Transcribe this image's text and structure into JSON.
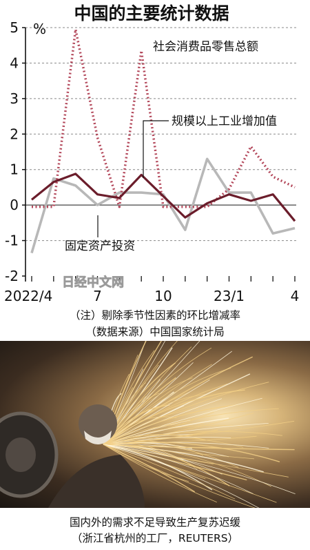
{
  "chart_data": {
    "type": "line",
    "title": "中国的主要统计数据",
    "unit": "%",
    "ylim": [
      -2,
      5
    ],
    "yticks": [
      "5",
      "4",
      "3",
      "2",
      "1",
      "0",
      "-1",
      "-2"
    ],
    "grid": true,
    "x_tick_labels": [
      {
        "index": 0,
        "label": "2022/4"
      },
      {
        "index": 3,
        "label": "7"
      },
      {
        "index": 6,
        "label": "10"
      },
      {
        "index": 9,
        "label": "23/1"
      },
      {
        "index": 12,
        "label": "4"
      }
    ],
    "series": [
      {
        "name": "社会消费品零售总额",
        "style": "dotted",
        "color": "#b3475a",
        "values": [
          -0.05,
          -0.05,
          4.95,
          1.9,
          -0.05,
          4.35,
          -0.05,
          -0.05,
          -0.05,
          0.45,
          1.65,
          0.8,
          0.5
        ]
      },
      {
        "name": "规模以上工业增加值",
        "style": "solid",
        "color": "#6b1d2b",
        "values": [
          0.15,
          0.65,
          0.88,
          0.3,
          0.2,
          0.85,
          0.25,
          -0.35,
          0.05,
          0.3,
          0.12,
          0.3,
          -0.45
        ]
      },
      {
        "name": "固定资产投资",
        "style": "solid",
        "color": "#b8b8b8",
        "values": [
          -1.35,
          0.75,
          0.55,
          0.0,
          0.35,
          0.35,
          0.3,
          -0.7,
          1.3,
          0.35,
          0.35,
          -0.8,
          -0.65
        ]
      }
    ]
  },
  "watermark": "日经中文网",
  "notes": [
    "（注）剔除季节性因素的环比增减率",
    "（数据来源）中国国家统计局"
  ],
  "photo_caption": [
    "国内外的需求不足导致生产复苏迟缓",
    "（浙江省杭州的工厂，REUTERS）"
  ]
}
